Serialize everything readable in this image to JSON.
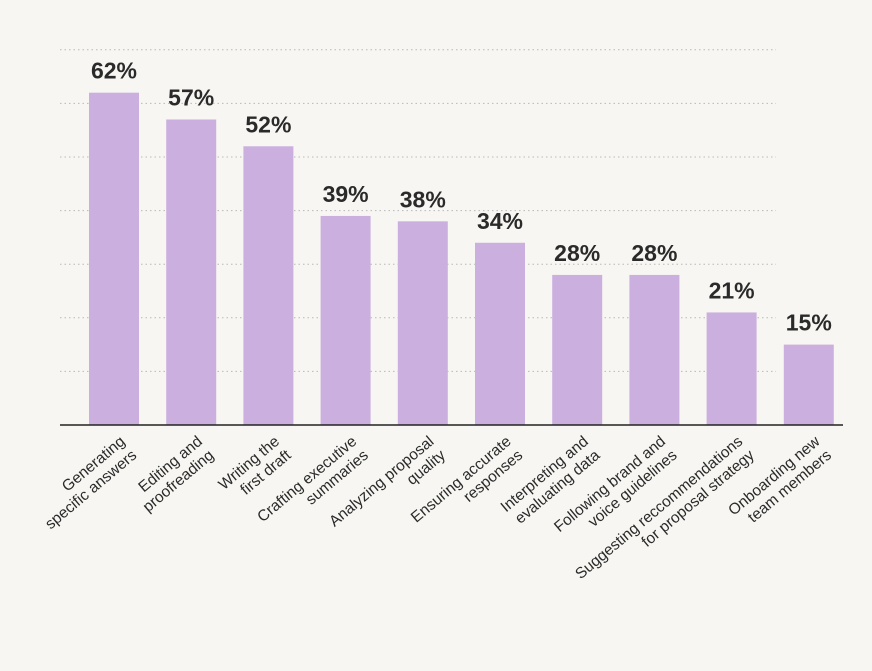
{
  "chart_data": {
    "type": "bar",
    "categories": [
      [
        "Generating",
        "specific answers"
      ],
      [
        "Editing and",
        "proofreading"
      ],
      [
        "Writing the",
        "first draft"
      ],
      [
        "Crafting executive",
        "summaries"
      ],
      [
        "Analyzing proposal",
        "quality"
      ],
      [
        "Ensuring accurate",
        "responses"
      ],
      [
        "Interpreting and",
        "evaluating data"
      ],
      [
        "Following brand and",
        "voice guidelines"
      ],
      [
        "Suggesting reccommendations",
        "for proposal strategy"
      ],
      [
        "Onboarding new",
        "team members"
      ]
    ],
    "values": [
      62,
      57,
      52,
      39,
      38,
      34,
      28,
      28,
      21,
      15
    ],
    "value_labels": [
      "62%",
      "57%",
      "52%",
      "39%",
      "38%",
      "34%",
      "28%",
      "28%",
      "21%",
      "15%"
    ],
    "ylim": [
      0,
      70
    ],
    "grid": true,
    "bar_color": "#cbb0df",
    "title": "",
    "xlabel": "",
    "ylabel": ""
  }
}
